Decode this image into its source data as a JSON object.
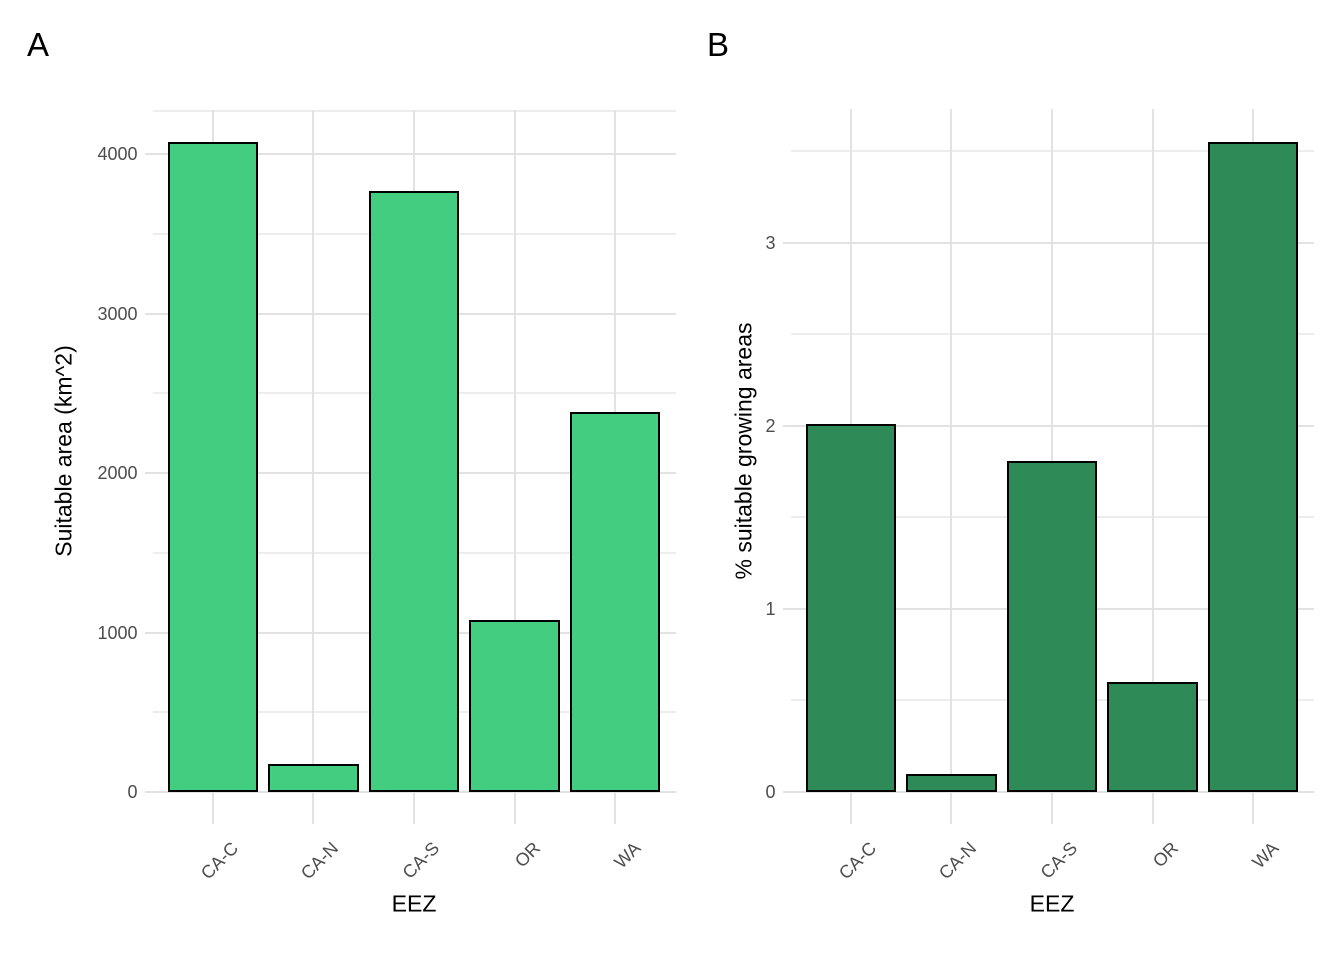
{
  "figure": {
    "background": "#ffffff",
    "panel_tags": [
      "A",
      "B"
    ]
  },
  "chart_data": [
    {
      "type": "bar",
      "tag": "A",
      "categories": [
        "CA-C",
        "CA-N",
        "CA-S",
        "OR",
        "WA"
      ],
      "values": [
        4075,
        175,
        3770,
        1080,
        2380
      ],
      "xlabel": "EEZ",
      "ylabel": "Suitable area (km^2)",
      "yticks": [
        0,
        1000,
        2000,
        3000,
        4000
      ],
      "ytick_labels": [
        "0",
        "1000",
        "2000",
        "3000",
        "4000"
      ],
      "minor_ticks": [
        500,
        1500,
        2500,
        3500
      ],
      "ylim": [
        0,
        4277
      ],
      "top_border_line": true,
      "bar_color": "#43CD80",
      "bar_border_color": "#000000",
      "grid": true,
      "legend": false
    },
    {
      "type": "bar",
      "tag": "B",
      "categories": [
        "CA-C",
        "CA-N",
        "CA-S",
        "OR",
        "WA"
      ],
      "values": [
        2.01,
        0.1,
        1.81,
        0.6,
        3.55
      ],
      "xlabel": "EEZ",
      "ylabel": "% suitable growing areas",
      "yticks": [
        0,
        1,
        2,
        3
      ],
      "ytick_labels": [
        "0",
        "1",
        "2",
        "3"
      ],
      "minor_ticks": [
        0.5,
        1.5,
        2.5,
        3.5
      ],
      "ylim": [
        0,
        3.73
      ],
      "top_border_line": false,
      "bar_color": "#2E8B57",
      "bar_border_color": "#000000",
      "grid": true,
      "legend": false
    }
  ],
  "style": {
    "grid_major_color": "#e2e2e2",
    "grid_minor_color": "#ededed",
    "tick_mark_color": "#e2e2e2",
    "tick_text_color": "#4d4d4d",
    "title_text_color": "#000000"
  }
}
